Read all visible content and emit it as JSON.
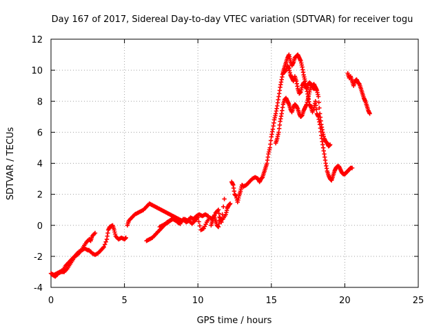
{
  "chart_data": {
    "type": "scatter",
    "title": "Day 167 of 2017, Sidereal Day-to-day VTEC variation (SDTVAR) for receiver togu",
    "xlabel": "GPS time / hours",
    "ylabel": "SDTVAR / TECUs",
    "xlim": [
      0,
      25
    ],
    "ylim": [
      -4,
      12
    ],
    "xticks": [
      0,
      5,
      10,
      15,
      20,
      25
    ],
    "yticks": [
      -4,
      -2,
      0,
      2,
      4,
      6,
      8,
      10,
      12
    ],
    "grid": true,
    "marker": "plus",
    "color": "#ff0000",
    "series": [
      {
        "points": [
          [
            0.0,
            -3.1
          ],
          [
            0.2,
            -3.2
          ],
          [
            0.4,
            -3.1
          ],
          [
            0.6,
            -3.0
          ],
          [
            0.8,
            -2.9
          ],
          [
            1.0,
            -2.6
          ],
          [
            1.2,
            -2.4
          ],
          [
            1.4,
            -2.2
          ],
          [
            1.6,
            -2.0
          ],
          [
            1.8,
            -1.9
          ],
          [
            2.0,
            -1.7
          ],
          [
            2.2,
            -1.4
          ],
          [
            2.4,
            -1.1
          ],
          [
            2.6,
            -0.9
          ],
          [
            2.7,
            -1.0
          ],
          [
            2.8,
            -0.7
          ],
          [
            3.0,
            -0.5
          ]
        ]
      },
      {
        "points": [
          [
            0.1,
            -3.2
          ],
          [
            0.3,
            -3.3
          ],
          [
            0.5,
            -3.1
          ],
          [
            0.7,
            -3.0
          ],
          [
            0.9,
            -3.0
          ],
          [
            1.1,
            -2.8
          ],
          [
            1.3,
            -2.5
          ],
          [
            1.5,
            -2.2
          ],
          [
            1.7,
            -1.9
          ],
          [
            1.9,
            -1.7
          ],
          [
            2.1,
            -1.6
          ],
          [
            2.3,
            -1.5
          ],
          [
            2.5,
            -1.6
          ],
          [
            2.6,
            -1.6
          ],
          [
            2.8,
            -1.8
          ],
          [
            3.0,
            -1.9
          ],
          [
            3.2,
            -1.8
          ],
          [
            3.4,
            -1.6
          ],
          [
            3.6,
            -1.4
          ],
          [
            3.8,
            -0.9
          ],
          [
            3.9,
            -0.3
          ],
          [
            4.0,
            -0.1
          ],
          [
            4.2,
            0.0
          ],
          [
            4.3,
            -0.3
          ],
          [
            4.4,
            -0.7
          ],
          [
            4.6,
            -0.9
          ],
          [
            4.8,
            -0.8
          ],
          [
            5.0,
            -0.9
          ],
          [
            5.1,
            -0.8
          ]
        ]
      },
      {
        "points": [
          [
            5.2,
            0.0
          ],
          [
            5.3,
            0.3
          ],
          [
            5.5,
            0.5
          ],
          [
            5.7,
            0.7
          ],
          [
            5.9,
            0.8
          ],
          [
            6.1,
            0.9
          ],
          [
            6.3,
            1.0
          ],
          [
            6.5,
            1.2
          ],
          [
            6.7,
            1.4
          ],
          [
            6.9,
            1.3
          ],
          [
            7.1,
            1.2
          ],
          [
            7.3,
            1.1
          ],
          [
            7.5,
            1.0
          ],
          [
            7.7,
            0.9
          ],
          [
            7.9,
            0.8
          ],
          [
            8.1,
            0.7
          ],
          [
            8.3,
            0.6
          ],
          [
            8.5,
            0.5
          ],
          [
            8.7,
            0.4
          ],
          [
            8.9,
            0.3
          ]
        ]
      },
      {
        "points": [
          [
            6.5,
            -1.0
          ],
          [
            6.7,
            -0.9
          ],
          [
            6.9,
            -0.8
          ],
          [
            7.1,
            -0.6
          ],
          [
            7.3,
            -0.4
          ],
          [
            7.5,
            -0.2
          ],
          [
            7.7,
            0.0
          ],
          [
            7.9,
            0.2
          ],
          [
            8.1,
            0.3
          ],
          [
            8.3,
            0.4
          ],
          [
            8.5,
            0.3
          ],
          [
            8.7,
            0.2
          ],
          [
            8.9,
            0.3
          ],
          [
            9.1,
            0.4
          ],
          [
            9.3,
            0.3
          ],
          [
            9.5,
            0.5
          ],
          [
            9.7,
            0.4
          ],
          [
            9.9,
            0.6
          ],
          [
            10.1,
            0.7
          ],
          [
            10.3,
            0.6
          ],
          [
            10.5,
            0.7
          ],
          [
            10.7,
            0.6
          ]
        ]
      },
      {
        "points": [
          [
            7.4,
            -0.1
          ],
          [
            7.6,
            0.0
          ],
          [
            7.8,
            0.1
          ],
          [
            8.0,
            0.2
          ],
          [
            8.2,
            0.4
          ],
          [
            8.4,
            0.5
          ],
          [
            8.6,
            0.2
          ],
          [
            8.8,
            0.1
          ],
          [
            9.0,
            0.4
          ],
          [
            9.2,
            0.2
          ],
          [
            9.4,
            0.3
          ],
          [
            9.6,
            0.1
          ],
          [
            9.8,
            0.3
          ],
          [
            10.0,
            0.5
          ],
          [
            10.2,
            -0.3
          ],
          [
            10.4,
            -0.2
          ],
          [
            10.6,
            0.2
          ],
          [
            10.8,
            0.5
          ],
          [
            11.0,
            0.4
          ],
          [
            11.2,
            0.8
          ],
          [
            11.4,
            1.0
          ],
          [
            11.5,
            0.3
          ],
          [
            11.7,
            0.4
          ],
          [
            11.9,
            0.7
          ],
          [
            12.0,
            1.1
          ],
          [
            12.1,
            1.3
          ],
          [
            12.2,
            1.4
          ]
        ]
      },
      {
        "points": [
          [
            10.9,
            0.0
          ],
          [
            11.0,
            0.3
          ],
          [
            11.1,
            0.6
          ],
          [
            11.2,
            0.3
          ],
          [
            11.3,
            0.0
          ],
          [
            11.4,
            -0.1
          ],
          [
            11.5,
            0.5
          ],
          [
            11.6,
            0.2
          ],
          [
            11.8,
            1.7
          ]
        ]
      },
      {
        "points": [
          [
            12.3,
            2.8
          ],
          [
            12.4,
            2.6
          ],
          [
            12.5,
            2.0
          ],
          [
            12.6,
            1.9
          ],
          [
            12.7,
            1.5
          ],
          [
            12.8,
            1.9
          ],
          [
            12.9,
            2.2
          ],
          [
            13.0,
            2.6
          ],
          [
            13.1,
            2.5
          ],
          [
            13.3,
            2.6
          ],
          [
            13.5,
            2.8
          ],
          [
            13.7,
            3.0
          ],
          [
            13.9,
            3.1
          ],
          [
            14.1,
            3.0
          ],
          [
            14.2,
            2.8
          ],
          [
            14.3,
            3.0
          ],
          [
            14.4,
            3.1
          ],
          [
            14.5,
            3.4
          ],
          [
            14.6,
            3.7
          ],
          [
            14.7,
            4.0
          ],
          [
            14.8,
            4.6
          ],
          [
            14.9,
            5.0
          ],
          [
            15.0,
            5.7
          ],
          [
            15.1,
            6.2
          ],
          [
            15.2,
            6.8
          ],
          [
            15.3,
            7.2
          ],
          [
            15.4,
            7.7
          ],
          [
            15.5,
            8.3
          ],
          [
            15.6,
            8.9
          ],
          [
            15.7,
            9.4
          ],
          [
            15.8,
            9.9
          ],
          [
            15.9,
            10.2
          ],
          [
            16.0,
            10.5
          ],
          [
            16.1,
            10.8
          ],
          [
            16.2,
            11.0
          ],
          [
            16.3,
            10.6
          ],
          [
            16.4,
            10.3
          ],
          [
            16.5,
            10.5
          ],
          [
            16.6,
            10.8
          ],
          [
            16.7,
            10.9
          ],
          [
            16.8,
            11.0
          ],
          [
            16.9,
            10.8
          ],
          [
            17.0,
            10.6
          ],
          [
            17.1,
            10.2
          ],
          [
            17.2,
            9.7
          ],
          [
            17.3,
            9.3
          ],
          [
            17.4,
            8.8
          ],
          [
            17.5,
            8.3
          ],
          [
            17.6,
            7.8
          ],
          [
            17.7,
            7.6
          ],
          [
            17.8,
            7.3
          ],
          [
            17.9,
            7.6
          ],
          [
            18.0,
            8.0
          ],
          [
            18.1,
            7.2
          ],
          [
            18.2,
            7.0
          ],
          [
            18.3,
            6.5
          ],
          [
            18.4,
            5.8
          ],
          [
            18.5,
            5.2
          ],
          [
            18.6,
            4.6
          ],
          [
            18.7,
            4.0
          ],
          [
            18.8,
            3.5
          ],
          [
            18.9,
            3.2
          ],
          [
            19.0,
            3.0
          ],
          [
            19.1,
            2.9
          ],
          [
            19.2,
            3.2
          ],
          [
            19.3,
            3.5
          ],
          [
            19.4,
            3.7
          ],
          [
            19.5,
            3.8
          ],
          [
            19.6,
            3.8
          ],
          [
            19.7,
            3.6
          ],
          [
            19.8,
            3.4
          ],
          [
            19.9,
            3.3
          ],
          [
            20.0,
            3.3
          ],
          [
            20.1,
            3.4
          ],
          [
            20.2,
            3.5
          ],
          [
            20.3,
            3.6
          ],
          [
            20.4,
            3.7
          ],
          [
            20.5,
            3.7
          ]
        ]
      },
      {
        "points": [
          [
            15.3,
            5.3
          ],
          [
            15.4,
            5.6
          ],
          [
            15.5,
            6.0
          ],
          [
            15.6,
            6.7
          ],
          [
            15.7,
            7.2
          ],
          [
            15.8,
            7.8
          ],
          [
            15.9,
            8.1
          ],
          [
            16.0,
            8.2
          ],
          [
            16.1,
            8.0
          ],
          [
            16.2,
            7.8
          ],
          [
            16.3,
            7.5
          ],
          [
            16.4,
            7.3
          ],
          [
            16.5,
            7.6
          ],
          [
            16.6,
            7.8
          ],
          [
            16.7,
            7.7
          ],
          [
            16.8,
            7.5
          ],
          [
            16.9,
            7.2
          ],
          [
            17.0,
            7.0
          ],
          [
            17.1,
            7.1
          ],
          [
            17.2,
            7.4
          ],
          [
            17.3,
            7.6
          ],
          [
            17.4,
            7.8
          ],
          [
            17.5,
            8.2
          ],
          [
            17.6,
            8.6
          ],
          [
            17.7,
            9.0
          ],
          [
            17.8,
            9.0
          ],
          [
            17.9,
            9.1
          ],
          [
            18.0,
            8.9
          ],
          [
            18.1,
            8.7
          ],
          [
            18.2,
            8.3
          ],
          [
            18.3,
            7.2
          ],
          [
            18.4,
            6.5
          ],
          [
            18.5,
            6.0
          ],
          [
            18.6,
            5.6
          ],
          [
            18.7,
            5.4
          ],
          [
            18.8,
            5.3
          ],
          [
            18.9,
            5.1
          ],
          [
            19.0,
            5.2
          ]
        ]
      },
      {
        "points": [
          [
            15.8,
            9.8
          ],
          [
            15.9,
            9.9
          ],
          [
            16.0,
            10.0
          ],
          [
            16.1,
            10.3
          ],
          [
            16.2,
            10.1
          ],
          [
            16.3,
            9.7
          ],
          [
            16.4,
            9.5
          ],
          [
            16.5,
            9.3
          ],
          [
            16.6,
            9.6
          ],
          [
            16.7,
            9.3
          ],
          [
            16.8,
            8.8
          ],
          [
            16.9,
            8.5
          ],
          [
            17.0,
            8.6
          ],
          [
            17.1,
            9.0
          ],
          [
            17.2,
            9.2
          ],
          [
            17.3,
            9.0
          ],
          [
            17.4,
            8.8
          ],
          [
            17.5,
            9.1
          ],
          [
            17.6,
            9.2
          ],
          [
            17.7,
            9.1
          ],
          [
            17.8,
            8.9
          ],
          [
            17.9,
            8.8
          ],
          [
            18.0,
            8.9
          ],
          [
            18.1,
            8.7
          ]
        ]
      },
      {
        "points": [
          [
            20.2,
            9.8
          ],
          [
            20.3,
            9.5
          ],
          [
            20.4,
            9.6
          ],
          [
            20.5,
            9.3
          ],
          [
            20.6,
            9.0
          ],
          [
            20.7,
            9.3
          ],
          [
            20.8,
            9.4
          ],
          [
            20.9,
            9.2
          ],
          [
            21.0,
            9.1
          ],
          [
            21.1,
            8.8
          ],
          [
            21.2,
            8.5
          ],
          [
            21.3,
            8.2
          ],
          [
            21.4,
            8.0
          ],
          [
            21.5,
            7.7
          ],
          [
            21.6,
            7.4
          ],
          [
            21.7,
            7.2
          ]
        ]
      }
    ]
  }
}
